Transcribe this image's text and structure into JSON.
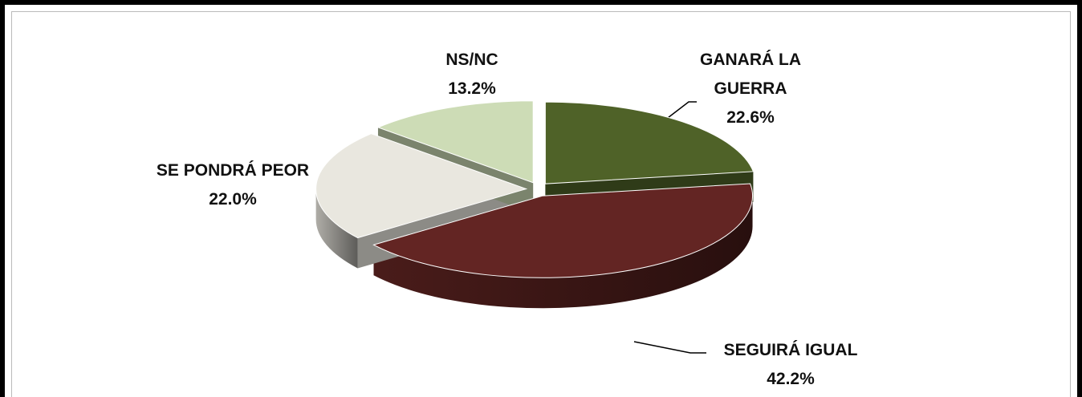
{
  "chart_data": {
    "type": "pie",
    "categories": [
      "GANARÁ LA GUERRA",
      "SEGUIRÁ IGUAL",
      "SE PONDRÁ PEOR",
      "NS/NC"
    ],
    "values": [
      22.6,
      42.2,
      22.0,
      13.2
    ],
    "value_labels": [
      "22.6%",
      "42.2%",
      "22.0%",
      "13.2%"
    ],
    "colors": [
      "#4f6228",
      "#632523",
      "#e9e7df",
      "#cddcb6"
    ]
  }
}
